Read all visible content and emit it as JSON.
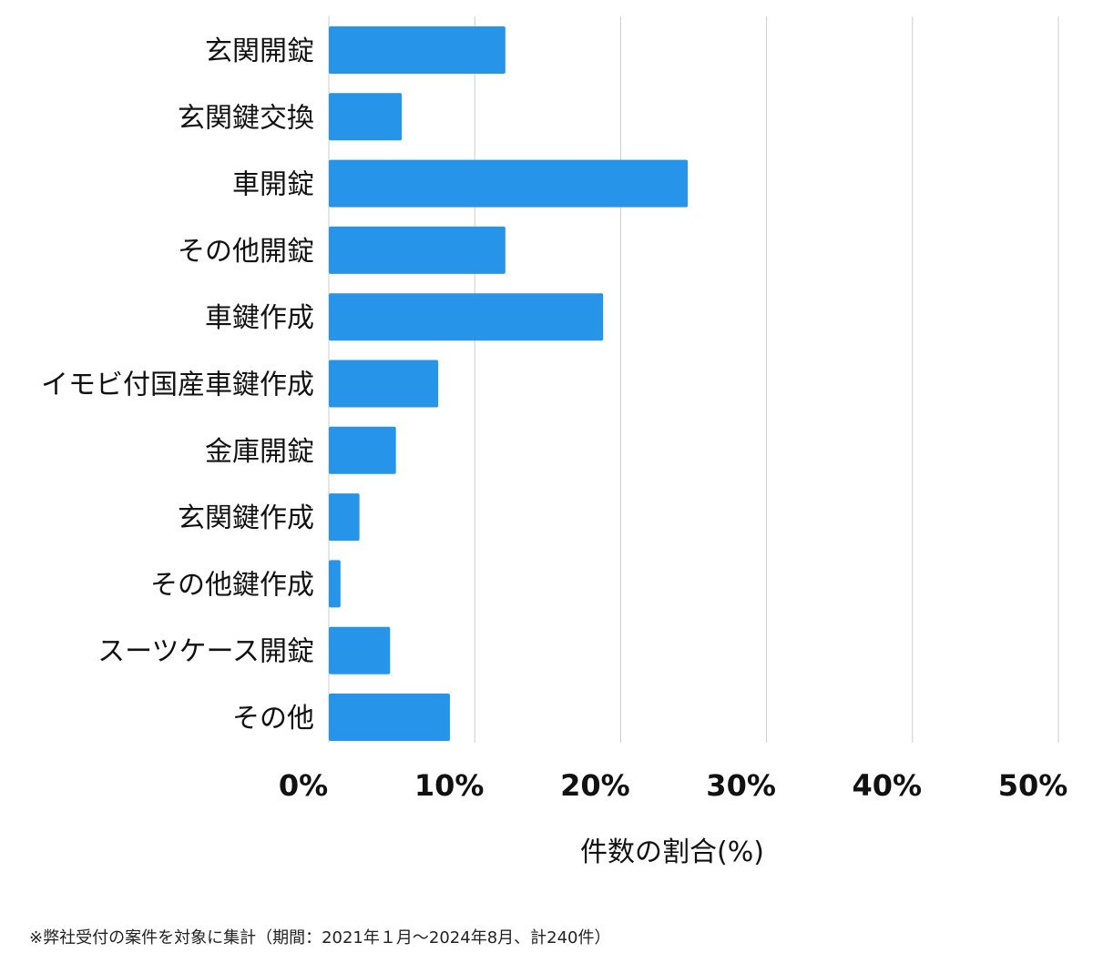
{
  "chart_data": {
    "type": "bar",
    "orientation": "horizontal",
    "categories": [
      "玄関開錠",
      "玄関鍵交換",
      "車開錠",
      "その他開錠",
      "車鍵作成",
      "イモビ付国産車鍵作成",
      "金庫開錠",
      "玄関鍵作成",
      "その他鍵作成",
      "スーツケース開錠",
      "その他"
    ],
    "values": [
      12.1,
      5.0,
      24.6,
      12.1,
      18.8,
      7.5,
      4.6,
      2.1,
      0.8,
      4.2,
      8.3
    ],
    "xlabel": "件数の割合(%)",
    "xlim": [
      0,
      50
    ],
    "xticks": [
      0,
      10,
      20,
      30,
      40,
      50
    ],
    "xtick_labels": [
      "0%",
      "10%",
      "20%",
      "30%",
      "40%",
      "50%"
    ],
    "grid": true,
    "bar_color": "#2694e8",
    "grid_color": "#cccccc"
  },
  "footnote": "※弊社受付の案件を対象に集計（期間：2021年１月〜2024年8月、計240件）"
}
